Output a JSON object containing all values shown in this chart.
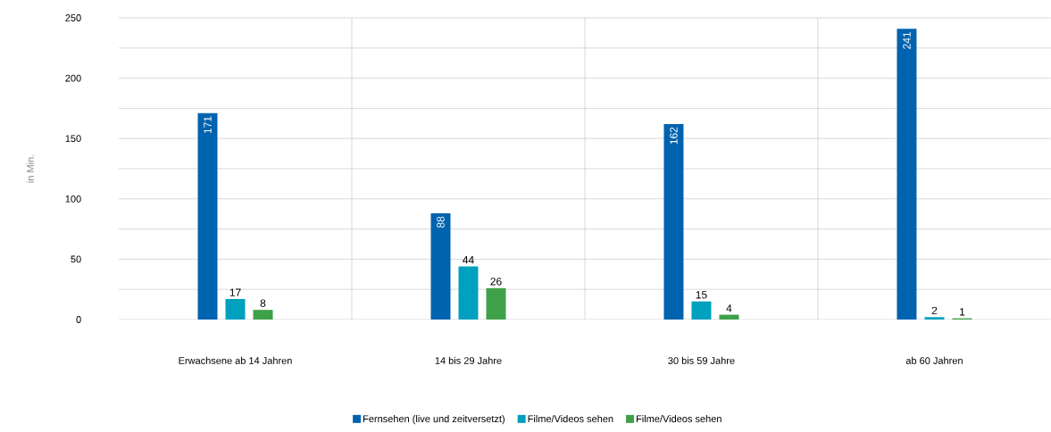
{
  "chart_data": {
    "type": "bar",
    "ylabel": "in Min.",
    "categories": [
      "Erwachsene ab 14 Jahren",
      "14 bis 29 Jahre",
      "30 bis 59 Jahre",
      "ab 60 Jahren"
    ],
    "series": [
      {
        "name": "Fernsehen (live und zeitversetzt)",
        "color": "#0063af",
        "values": [
          171,
          88,
          162,
          241
        ]
      },
      {
        "name": "Filme/Videos sehen",
        "color": "#00a0bf",
        "values": [
          17,
          44,
          15,
          2
        ]
      },
      {
        "name": "Filme/Videos sehen",
        "color": "#3fa04a",
        "values": [
          8,
          26,
          4,
          1
        ]
      }
    ],
    "ylim": [
      0,
      250
    ],
    "yticks": [
      0,
      {
        "value": 25,
        "label": null
      },
      50,
      {
        "value": 75,
        "label": null
      },
      100,
      {
        "value": 125,
        "label": null
      },
      150,
      {
        "value": 175,
        "label": null
      },
      200,
      {
        "value": 225,
        "label": null
      },
      250
    ],
    "grid": true,
    "legend": "bottom",
    "data_labels": true
  }
}
